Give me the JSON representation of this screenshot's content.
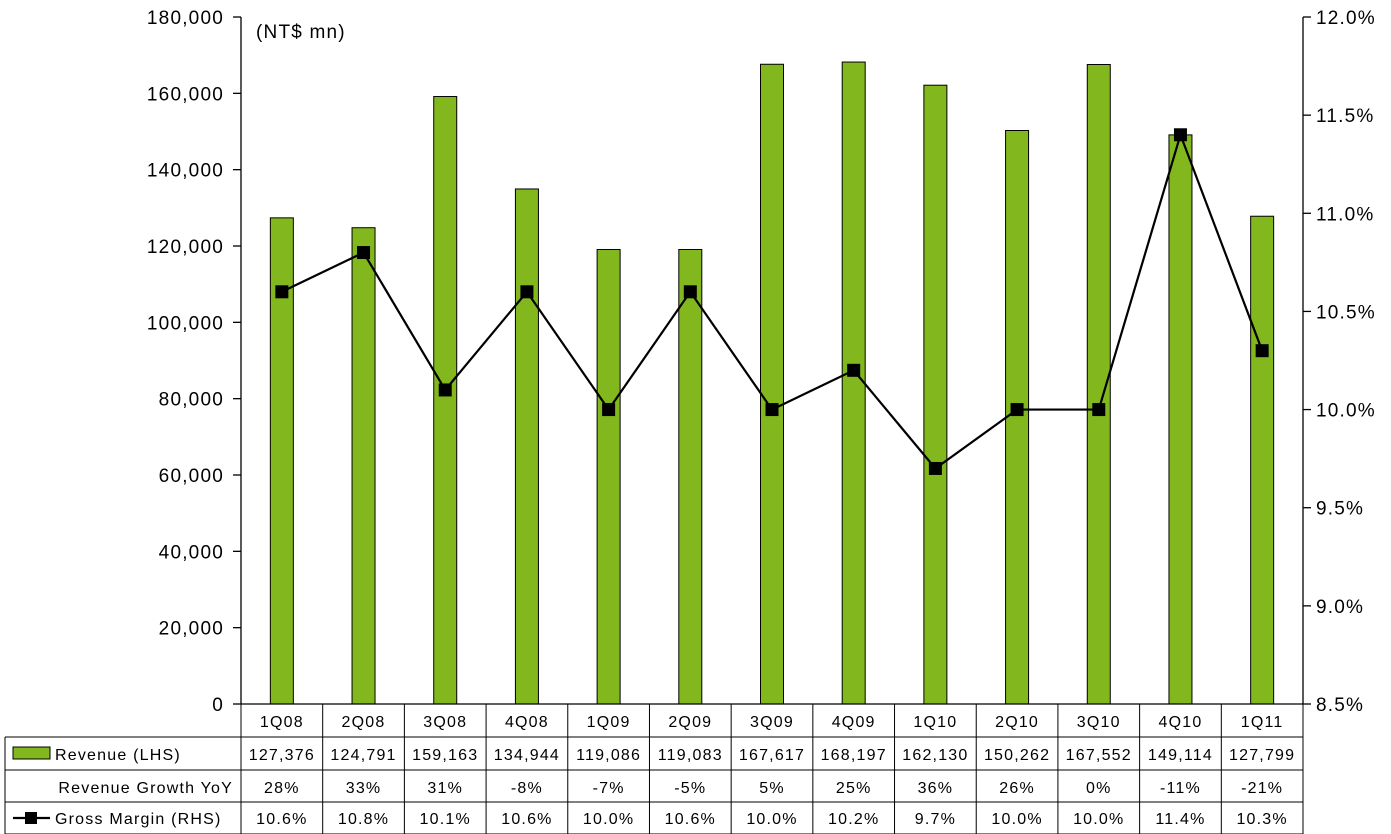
{
  "chart_data": {
    "type": "bar",
    "unit_label": "(NT$ mn)",
    "categories": [
      "1Q08",
      "2Q08",
      "3Q08",
      "4Q08",
      "1Q09",
      "2Q09",
      "3Q09",
      "4Q09",
      "1Q10",
      "2Q10",
      "3Q10",
      "4Q10",
      "1Q11"
    ],
    "y_left": {
      "ylim": [
        0,
        180000
      ],
      "ticks": [
        0,
        20000,
        40000,
        60000,
        80000,
        100000,
        120000,
        140000,
        160000,
        180000
      ],
      "tick_labels": [
        "0",
        "20,000",
        "40,000",
        "60,000",
        "80,000",
        "100,000",
        "120,000",
        "140,000",
        "160,000",
        "180,000"
      ]
    },
    "y_right": {
      "ylim": [
        8.5,
        12.0
      ],
      "ticks": [
        8.5,
        9.0,
        9.5,
        10.0,
        10.5,
        11.0,
        11.5,
        12.0
      ],
      "tick_labels": [
        "8.5%",
        "9.0%",
        "9.5%",
        "10.0%",
        "10.5%",
        "11.0%",
        "11.5%",
        "12.0%"
      ]
    },
    "series": [
      {
        "name": "Revenue (LHS)",
        "kind": "bar",
        "axis": "left",
        "color": "#82B81E",
        "values": [
          127376,
          124791,
          159163,
          134944,
          119086,
          119083,
          167617,
          168197,
          162130,
          150262,
          167552,
          149114,
          127799
        ],
        "labels": [
          "127,376",
          "124,791",
          "159,163",
          "134,944",
          "119,086",
          "119,083",
          "167,617",
          "168,197",
          "162,130",
          "150,262",
          "167,552",
          "149,114",
          "127,799"
        ]
      },
      {
        "name": "Revenue Growth YoY",
        "kind": "table-only",
        "labels": [
          "28%",
          "33%",
          "31%",
          "-8%",
          "-7%",
          "-5%",
          "5%",
          "25%",
          "36%",
          "26%",
          "0%",
          "-11%",
          "-21%"
        ]
      },
      {
        "name": "Gross Margin (RHS)",
        "kind": "line",
        "axis": "right",
        "color": "#000000",
        "values": [
          10.6,
          10.8,
          10.1,
          10.6,
          10.0,
          10.6,
          10.0,
          10.2,
          9.7,
          10.0,
          10.0,
          11.4,
          10.3
        ],
        "labels": [
          "10.6%",
          "10.8%",
          "10.1%",
          "10.6%",
          "10.0%",
          "10.6%",
          "10.0%",
          "10.2%",
          "9.7%",
          "10.0%",
          "10.0%",
          "11.4%",
          "10.3%"
        ]
      }
    ],
    "grid": false,
    "legend": "data table below chart"
  }
}
